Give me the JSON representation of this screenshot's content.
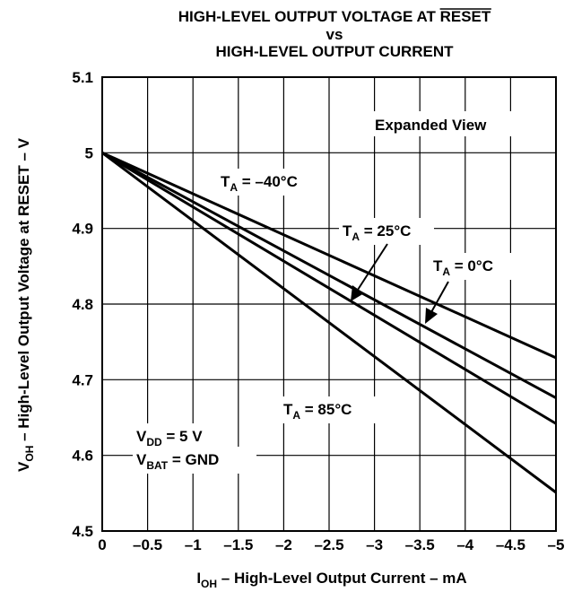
{
  "chart_data": {
    "type": "line",
    "title_lines": [
      "HIGH-LEVEL OUTPUT VOLTAGE AT RESET",
      "vs",
      "HIGH-LEVEL OUTPUT CURRENT"
    ],
    "title_prefix": "HIGH-LEVEL OUTPUT VOLTAGE AT ",
    "title_overlined": "RESET",
    "x_ticks": [
      0,
      -0.5,
      -1,
      -1.5,
      -2,
      -2.5,
      -3,
      -3.5,
      -4,
      -4.5,
      -5
    ],
    "x_tick_labels": [
      "0",
      "–0.5",
      "–1",
      "–1.5",
      "–2",
      "–2.5",
      "–3",
      "–3.5",
      "–4",
      "–4.5",
      "–5"
    ],
    "y_ticks": [
      4.5,
      4.6,
      4.7,
      4.8,
      4.9,
      5,
      5.1
    ],
    "y_tick_labels": [
      "4.5",
      "4.6",
      "4.7",
      "4.8",
      "4.9",
      "5",
      "5.1"
    ],
    "xlim": [
      0,
      -5
    ],
    "ylim": [
      4.5,
      5.1
    ],
    "xlabel": {
      "main": "I",
      "sub": "OH",
      "rest": " – High-Level Output Current – mA"
    },
    "ylabel": {
      "main": "V",
      "sub": "OH",
      "rest": " – High-Level Output Voltage at RESET – V"
    },
    "grid": true,
    "series": [
      {
        "name": "T_A = –40°C",
        "x": [
          0,
          -5
        ],
        "y": [
          5.0,
          4.729
        ]
      },
      {
        "name": "T_A = 0°C",
        "x": [
          0,
          -5
        ],
        "y": [
          5.0,
          4.676
        ]
      },
      {
        "name": "T_A = 25°C",
        "x": [
          0,
          -5
        ],
        "y": [
          5.0,
          4.642
        ]
      },
      {
        "name": "T_A = 85°C",
        "x": [
          0,
          -5
        ],
        "y": [
          5.0,
          4.551
        ]
      }
    ],
    "annotations": [
      {
        "id": "expanded",
        "text": "Expanded View"
      },
      {
        "id": "ta-m40",
        "main": "T",
        "sub": "A",
        "rest": " = –40°C"
      },
      {
        "id": "ta-25",
        "main": "T",
        "sub": "A",
        "rest": " = 25°C"
      },
      {
        "id": "ta-0",
        "main": "T",
        "sub": "A",
        "rest": " = 0°C"
      },
      {
        "id": "ta-85",
        "main": "T",
        "sub": "A",
        "rest": " = 85°C"
      },
      {
        "id": "vdd",
        "main": "V",
        "sub": "DD",
        "rest": " = 5 V"
      },
      {
        "id": "vbat",
        "main": "V",
        "sub": "BAT",
        "rest": " = GND"
      }
    ]
  }
}
